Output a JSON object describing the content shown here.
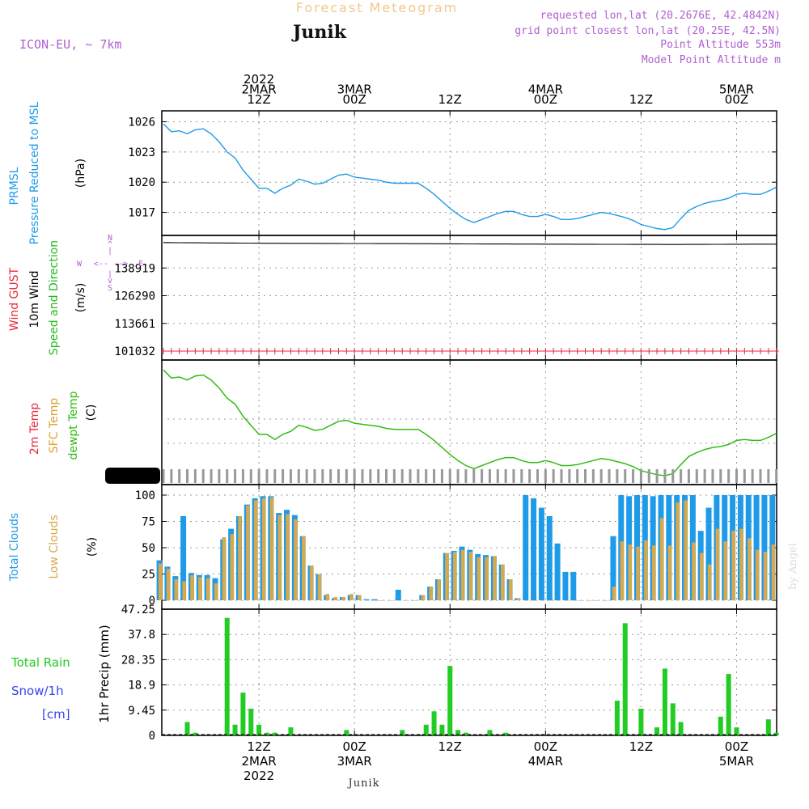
{
  "header": {
    "title_faint": "Forecast Meteogram",
    "location": "Junik",
    "model": "ICON-EU, ~ 7km",
    "info_lines": [
      "requested lon,lat (20.2676E, 42.4842N)",
      "grid point closest lon,lat (20.25E, 42.5N)",
      "Point Altitude 553m",
      "Model Point Altitude m"
    ],
    "footer_location": "Junik",
    "watermark": "by Angel"
  },
  "colors": {
    "pressure": "#1e9be8",
    "gust": "#e8283c",
    "wind10m": "#000000",
    "dir": "#22bb22",
    "temp2m": "#e8283c",
    "sfc": "#e0a030",
    "dewpt": "#33bb11",
    "total_cloud": "#1e9be8",
    "low_cloud": "#d9a84a",
    "rain": "#22cc22",
    "snow": "#3344ee",
    "axis_label_purple": "#b060d0"
  },
  "time_axis": {
    "top_labels": [
      {
        "lines": [
          "2022",
          "2MAR",
          "12Z"
        ]
      },
      {
        "lines": [
          "3MAR",
          "00Z"
        ]
      },
      {
        "lines": [
          "12Z"
        ]
      },
      {
        "lines": [
          "4MAR",
          "00Z"
        ]
      },
      {
        "lines": [
          "12Z"
        ]
      },
      {
        "lines": [
          "5MAR",
          "00Z"
        ]
      }
    ],
    "bottom_labels": [
      {
        "lines": [
          "12Z",
          "2MAR",
          "2022"
        ]
      },
      {
        "lines": [
          "00Z",
          "3MAR"
        ]
      },
      {
        "lines": [
          "12Z"
        ]
      },
      {
        "lines": [
          "00Z",
          "4MAR"
        ]
      },
      {
        "lines": [
          "12Z"
        ]
      },
      {
        "lines": [
          "00Z",
          "5MAR"
        ]
      }
    ],
    "tick_hours": [
      12,
      24,
      36,
      48,
      60,
      72
    ]
  },
  "chart_data": [
    {
      "type": "line",
      "panel": "pressure",
      "ylabel_lines": [
        "PRMSL",
        "Pressure Reduced to MSL"
      ],
      "unit": "(hPa)",
      "yticks": [
        1017,
        1020,
        1023,
        1026
      ],
      "ylim": [
        1015.2,
        1026.6
      ],
      "x_hours_start": 0,
      "x_hours_step": 1,
      "series": [
        {
          "values": [
            1025.8,
            1025.0,
            1025.1,
            1024.8,
            1025.2,
            1025.3,
            1024.8,
            1024.0,
            1023.0,
            1022.4,
            1021.2,
            1020.3,
            1019.4,
            1019.4,
            1018.9,
            1019.4,
            1019.7,
            1020.3,
            1020.1,
            1019.8,
            1019.9,
            1020.3,
            1020.7,
            1020.8,
            1020.5,
            1020.4,
            1020.3,
            1020.2,
            1020.0,
            1019.9,
            1019.9,
            1019.9,
            1019.9,
            1019.4,
            1018.8,
            1018.1,
            1017.4,
            1016.8,
            1016.3,
            1016.0,
            1016.3,
            1016.6,
            1016.9,
            1017.1,
            1017.1,
            1016.8,
            1016.6,
            1016.6,
            1016.8,
            1016.6,
            1016.3,
            1016.3,
            1016.4,
            1016.6,
            1016.8,
            1017.0,
            1016.9,
            1016.7,
            1016.5,
            1016.2,
            1015.8,
            1015.6,
            1015.4,
            1015.3,
            1015.5,
            1016.4,
            1017.2,
            1017.6,
            1017.9,
            1018.1,
            1018.2,
            1018.4,
            1018.8,
            1018.9,
            1018.8,
            1018.8,
            1019.1,
            1019.5
          ]
        }
      ]
    },
    {
      "type": "line",
      "panel": "wind",
      "ylabel_lines": [
        "Wind GUST",
        "10m Wind",
        "Speed and Direction"
      ],
      "unit": "(m/s)",
      "yticks": [
        101032,
        113661,
        126290,
        138919
      ],
      "compass": {
        "n": "N",
        "s": "S",
        "e": "E",
        "w": "W"
      },
      "x_hours_start": 0,
      "x_hours_step": 1,
      "series": [
        {
          "name": "10m Wind",
          "values": [
            150500,
            150480,
            150450,
            150420,
            150400,
            150370,
            150340,
            150320,
            150300,
            150280,
            150260,
            150240,
            150220,
            150200,
            150180,
            150170,
            150160,
            150150,
            150140,
            150130,
            150120,
            150110,
            150100,
            150090,
            150080,
            150070,
            150060,
            150050,
            150040,
            150030,
            150020,
            150010,
            150000,
            149990,
            149980,
            149960,
            149940,
            149920,
            149900,
            149880,
            149870,
            149860,
            149850,
            149840,
            149830,
            149820,
            149810,
            149800,
            149790,
            149780,
            149770,
            149760,
            149750,
            149740,
            149730,
            149720,
            149710,
            149700,
            149690,
            149680,
            149670,
            149660,
            149650,
            149640,
            149640,
            149640,
            149650,
            149660,
            149680,
            149700,
            149720,
            149730,
            149740,
            149750,
            149760,
            149770,
            149780,
            149790
          ]
        },
        {
          "name": "Wind GUST",
          "values": [
            101032,
            101032,
            101032,
            101032,
            101032,
            101032,
            101032,
            101032,
            101032,
            101032,
            101032,
            101032,
            101032,
            101032,
            101032,
            101032,
            101032,
            101032,
            101032,
            101032,
            101032,
            101032,
            101032,
            101032,
            101032,
            101032,
            101032,
            101032,
            101032,
            101032,
            101032,
            101032,
            101032,
            101032,
            101032,
            101032,
            101032,
            101032,
            101032,
            101032,
            101032,
            101032,
            101032,
            101032,
            101032,
            101032,
            101032,
            101032,
            101032,
            101032,
            101032,
            101032,
            101032,
            101032,
            101032,
            101032,
            101032,
            101032,
            101032,
            101032,
            101032,
            101032,
            101032,
            101032,
            101032,
            101032,
            101032,
            101032,
            101032,
            101032,
            101032,
            101032,
            101032,
            101032,
            101032,
            101032,
            101032,
            101032
          ]
        }
      ]
    },
    {
      "type": "line",
      "panel": "temperature",
      "ylabel_lines": [
        "2m Temp",
        "SFC Temp",
        "dewpt Temp"
      ],
      "unit": "(C)",
      "x_hours_start": 0,
      "x_hours_step": 1,
      "series": [
        {
          "name": "dewpt Temp",
          "values": [
            1025.8,
            1025.0,
            1025.1,
            1024.8,
            1025.2,
            1025.3,
            1024.8,
            1024.0,
            1023.0,
            1022.4,
            1021.2,
            1020.3,
            1019.4,
            1019.4,
            1018.9,
            1019.4,
            1019.7,
            1020.3,
            1020.1,
            1019.8,
            1019.9,
            1020.3,
            1020.7,
            1020.8,
            1020.5,
            1020.4,
            1020.3,
            1020.2,
            1020.0,
            1019.9,
            1019.9,
            1019.9,
            1019.9,
            1019.4,
            1018.8,
            1018.1,
            1017.4,
            1016.8,
            1016.3,
            1016.0,
            1016.3,
            1016.6,
            1016.9,
            1017.1,
            1017.1,
            1016.8,
            1016.6,
            1016.6,
            1016.8,
            1016.6,
            1016.3,
            1016.3,
            1016.4,
            1016.6,
            1016.8,
            1017.0,
            1016.9,
            1016.7,
            1016.5,
            1016.2,
            1015.8,
            1015.6,
            1015.4,
            1015.3,
            1015.5,
            1016.4,
            1017.2,
            1017.6,
            1017.9,
            1018.1,
            1018.2,
            1018.4,
            1018.8,
            1018.9,
            1018.8,
            1018.8,
            1019.1,
            1019.5
          ]
        }
      ]
    },
    {
      "type": "bar",
      "panel": "clouds",
      "ylabel_lines": [
        "Total Clouds",
        "Low Clouds"
      ],
      "unit": "(%)",
      "yticks": [
        0,
        25,
        50,
        75,
        100
      ],
      "ylim": [
        0,
        100
      ],
      "x_hours_start": -0.5,
      "x_hours_step": 1,
      "series": [
        {
          "name": "Total Clouds",
          "values": [
            38,
            32,
            23,
            80,
            26,
            24,
            24,
            21,
            58,
            68,
            80,
            91,
            97,
            99,
            99,
            83,
            86,
            81,
            61,
            33,
            25,
            5,
            2,
            3,
            5,
            5,
            1,
            1,
            0,
            0,
            10,
            0,
            0,
            5,
            13,
            20,
            45,
            47,
            51,
            48,
            44,
            43,
            42,
            34,
            20,
            2,
            100,
            97,
            88,
            80,
            54,
            27,
            27,
            0,
            0,
            0,
            0,
            61,
            100,
            99,
            100,
            100,
            99,
            100,
            100,
            100,
            100,
            100,
            66,
            88,
            100,
            100,
            100,
            100,
            100,
            100,
            100,
            100
          ]
        },
        {
          "name": "Low Clouds",
          "values": [
            35,
            30,
            20,
            18,
            24,
            22,
            21,
            16,
            60,
            63,
            80,
            90,
            95,
            97,
            98,
            81,
            82,
            77,
            61,
            33,
            25,
            6,
            3,
            3,
            6,
            5,
            0,
            0,
            0,
            0,
            0,
            0,
            0,
            5,
            13,
            20,
            45,
            46,
            48,
            46,
            41,
            41,
            42,
            34,
            20,
            2,
            0,
            0,
            0,
            0,
            0,
            0,
            0,
            0,
            0,
            0,
            0,
            13,
            56,
            53,
            51,
            57,
            52,
            78,
            52,
            93,
            95,
            55,
            45,
            34,
            68,
            56,
            66,
            68,
            59,
            48,
            46,
            53
          ]
        }
      ]
    },
    {
      "type": "bar",
      "panel": "precip",
      "ylabel_lines": [
        "Total Rain",
        "Snow/1h",
        "[cm]"
      ],
      "unit": "1hr Precip (mm)",
      "yticks": [
        0,
        9.45,
        18.9,
        28.35,
        37.8,
        47.25
      ],
      "ylim": [
        0,
        47.25
      ],
      "x_hours_start": 0,
      "x_hours_step": 1,
      "series": [
        {
          "name": "Total Rain",
          "values": [
            0,
            0,
            0,
            5,
            1,
            0,
            0,
            0,
            44,
            4,
            16,
            10,
            4,
            1,
            1,
            0,
            3,
            0,
            0,
            0,
            0,
            0,
            0,
            2,
            0,
            0,
            0,
            0,
            0,
            0,
            2,
            0,
            0,
            4,
            9,
            4,
            26,
            2,
            1,
            0,
            0,
            2,
            0,
            1,
            0,
            0,
            0,
            0,
            0,
            0,
            0,
            0,
            0,
            0,
            0,
            0,
            0,
            13,
            42,
            0,
            10,
            0,
            3,
            25,
            12,
            5,
            0,
            0,
            0,
            0,
            7,
            23,
            3,
            0,
            0,
            0,
            6,
            1
          ]
        },
        {
          "name": "Snow/1h",
          "values": [
            0,
            0,
            0,
            0,
            0,
            0,
            0,
            0,
            0,
            0,
            0,
            0,
            0,
            0,
            0,
            0,
            0,
            0,
            0,
            0,
            0,
            0,
            0,
            0,
            0,
            0,
            0,
            0,
            0,
            0,
            0,
            0,
            0,
            0,
            0,
            0,
            0,
            0,
            0,
            0,
            0,
            0,
            0,
            0,
            0,
            0,
            0,
            0,
            0,
            0,
            0,
            0,
            0,
            0,
            0,
            0,
            0,
            0,
            0,
            0,
            0,
            0,
            0,
            0,
            0,
            0,
            0,
            0,
            0,
            0,
            0,
            0,
            0,
            0,
            0,
            0,
            0,
            0,
            0
          ]
        }
      ]
    }
  ]
}
